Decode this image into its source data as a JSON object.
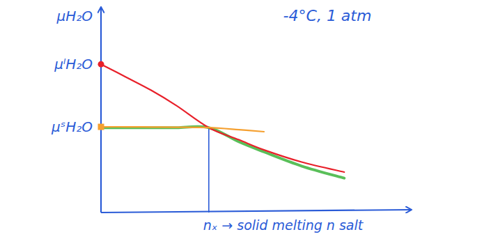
{
  "chart_data": {
    "type": "line",
    "title": "-4°C, 1 atm",
    "y_label": "μH₂O",
    "x_label": "nₓ → solid melting n salt",
    "tick_labels": false,
    "grid": false,
    "xlim": [
      0,
      10
    ],
    "ylim": [
      0,
      10
    ],
    "vline_x": 4.3,
    "x": [
      0,
      1,
      2,
      3,
      4.3,
      5.5,
      6.5,
      8,
      9.7
    ],
    "series": [
      {
        "name": "μˡH₂O",
        "color": "#e8202a",
        "marker": "circle-start",
        "values": [
          7.34,
          6.7,
          6.05,
          5.3,
          4.2,
          3.6,
          3.1,
          2.5,
          2.0
        ]
      },
      {
        "name": "μˢH₂O",
        "color": "#f5a030",
        "marker": "square-start",
        "values": [
          4.24,
          4.24,
          4.23,
          4.22,
          4.2,
          4.1,
          4.0,
          null,
          null
        ]
      },
      {
        "color": "#3cb43c",
        "marker": "none",
        "values": [
          4.2,
          4.2,
          4.2,
          4.2,
          4.2,
          3.5,
          3.0,
          2.3,
          1.7
        ]
      }
    ]
  }
}
